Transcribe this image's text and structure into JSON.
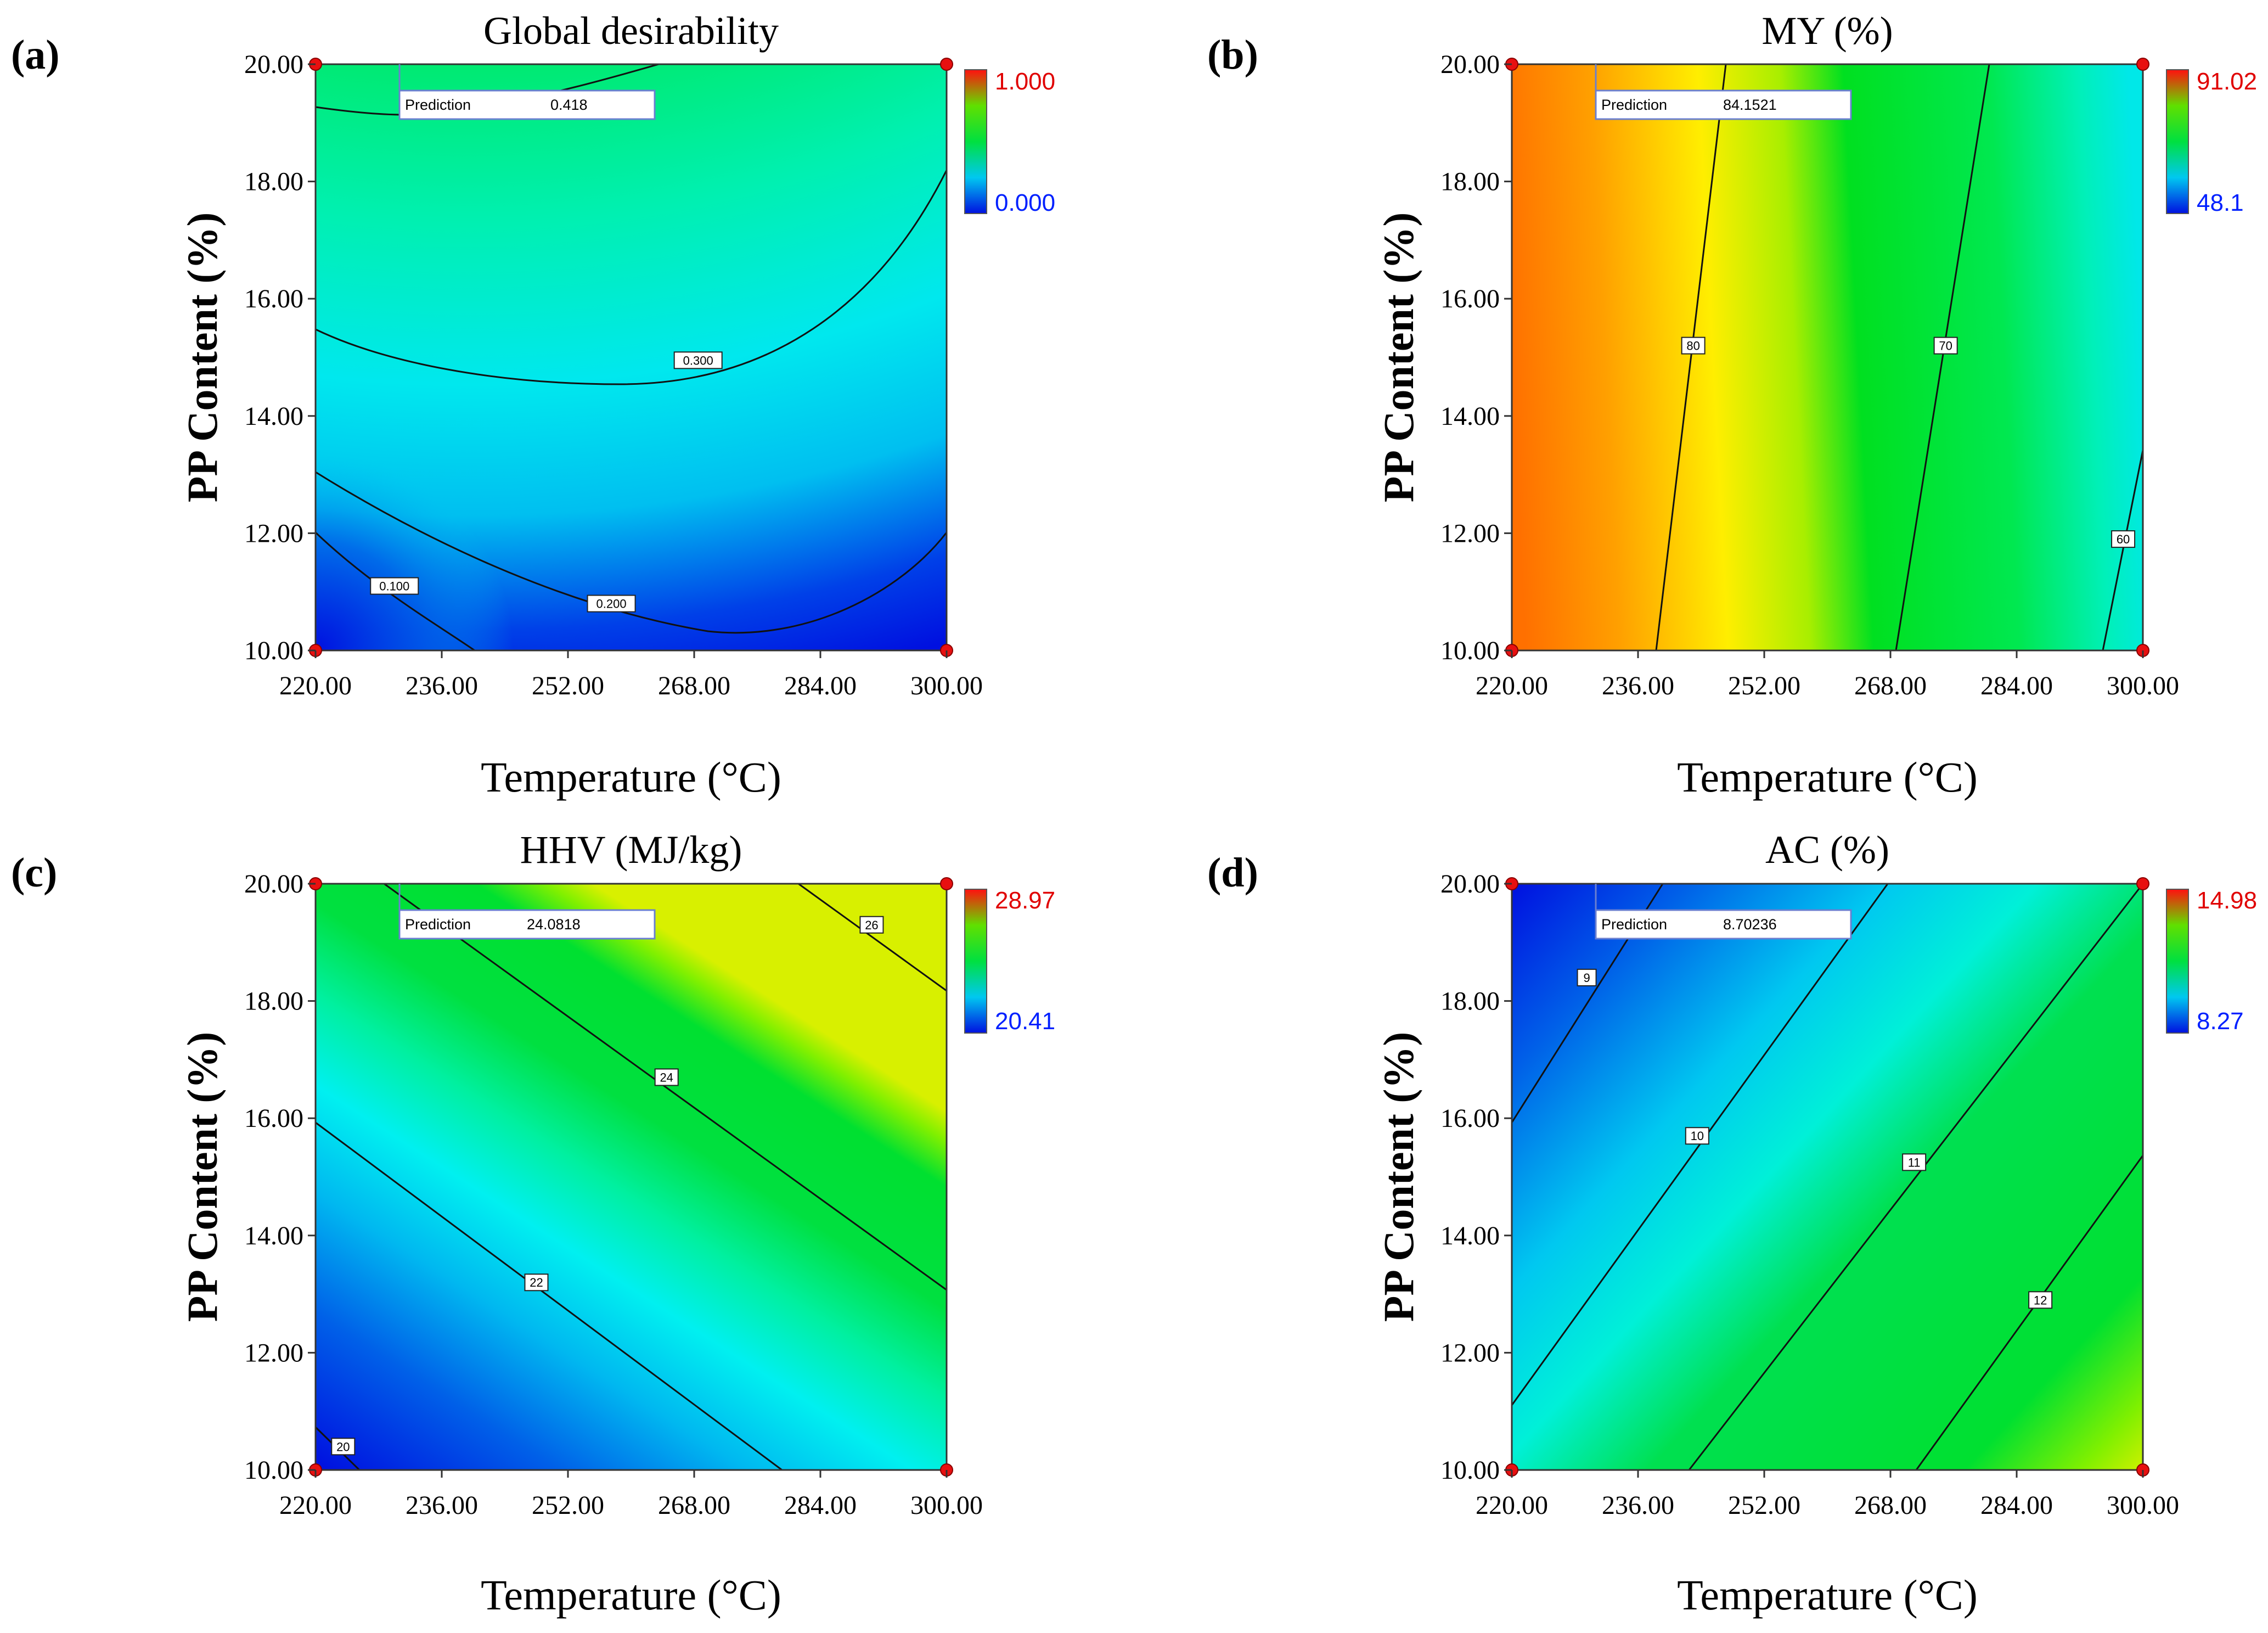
{
  "figure": {
    "panels": [
      {
        "panel_label": "(a)",
        "title": "Global desirability",
        "xlabel": "Temperature (°C)",
        "ylabel": "PP Content (%)",
        "x_ticks": [
          "220.00",
          "236.00",
          "252.00",
          "268.00",
          "284.00",
          "300.00"
        ],
        "y_ticks": [
          "10.00",
          "12.00",
          "14.00",
          "16.00",
          "18.00",
          "20.00"
        ],
        "prediction": {
          "label": "Prediction",
          "value": "0.418"
        },
        "colorbar": {
          "max_label": "1.000",
          "min_label": "0.000"
        },
        "contour_labels": [
          {
            "text": "0.100",
            "x": 230.0,
            "y": 11.1
          },
          {
            "text": "0.200",
            "x": 257.5,
            "y": 10.8
          },
          {
            "text": "0.300",
            "x": 268.5,
            "y": 14.95
          }
        ]
      },
      {
        "panel_label": "(b)",
        "title": "MY (%)",
        "xlabel": "Temperature (°C)",
        "ylabel": "PP Content (%)",
        "x_ticks": [
          "220.00",
          "236.00",
          "252.00",
          "268.00",
          "284.00",
          "300.00"
        ],
        "y_ticks": [
          "10.00",
          "12.00",
          "14.00",
          "16.00",
          "18.00",
          "20.00"
        ],
        "prediction": {
          "label": "Prediction",
          "value": "84.1521"
        },
        "colorbar": {
          "max_label": "91.02",
          "min_label": "48.1"
        },
        "contour_labels": [
          {
            "text": "80",
            "x": 243.0,
            "y": 15.2
          },
          {
            "text": "70",
            "x": 275.0,
            "y": 15.2
          },
          {
            "text": "60",
            "x": 297.5,
            "y": 11.9
          }
        ]
      },
      {
        "panel_label": "(c)",
        "title": "HHV (MJ/kg)",
        "xlabel": "Temperature (°C)",
        "ylabel": "PP Content (%)",
        "x_ticks": [
          "220.00",
          "236.00",
          "252.00",
          "268.00",
          "284.00",
          "300.00"
        ],
        "y_ticks": [
          "10.00",
          "12.00",
          "14.00",
          "16.00",
          "18.00",
          "20.00"
        ],
        "prediction": {
          "label": "Prediction",
          "value": "24.0818"
        },
        "colorbar": {
          "max_label": "28.97",
          "min_label": "20.41"
        },
        "contour_labels": [
          {
            "text": "20",
            "x": 223.5,
            "y": 10.4
          },
          {
            "text": "22",
            "x": 248.0,
            "y": 13.2
          },
          {
            "text": "24",
            "x": 264.5,
            "y": 16.7
          },
          {
            "text": "26",
            "x": 290.5,
            "y": 19.3
          }
        ]
      },
      {
        "panel_label": "(d)",
        "title": "AC (%)",
        "xlabel": "Temperature (°C)",
        "ylabel": "PP Content (%)",
        "x_ticks": [
          "220.00",
          "236.00",
          "252.00",
          "268.00",
          "284.00",
          "300.00"
        ],
        "y_ticks": [
          "10.00",
          "12.00",
          "14.00",
          "16.00",
          "18.00",
          "20.00"
        ],
        "prediction": {
          "label": "Prediction",
          "value": "8.70236"
        },
        "colorbar": {
          "max_label": "14.98",
          "min_label": "8.27"
        },
        "contour_labels": [
          {
            "text": "9",
            "x": 229.5,
            "y": 18.4
          },
          {
            "text": "10",
            "x": 243.5,
            "y": 15.7
          },
          {
            "text": "11",
            "x": 271.0,
            "y": 15.25
          },
          {
            "text": "12",
            "x": 287.0,
            "y": 12.9
          }
        ]
      }
    ]
  },
  "chart_data": [
    {
      "type": "heatmap",
      "subtype": "contour",
      "title": "Global desirability",
      "xlabel": "Temperature (°C)",
      "ylabel": "PP Content (%)",
      "xlim": [
        220,
        300
      ],
      "ylim": [
        10,
        20
      ],
      "colorbar_range": [
        0.0,
        1.0
      ],
      "contour_levels": [
        0.1,
        0.2,
        0.3
      ],
      "prediction": 0.418,
      "design_points": [
        [
          220,
          10
        ],
        [
          220,
          20
        ],
        [
          300,
          10
        ],
        [
          300,
          20
        ]
      ],
      "colors": {
        "low": "#0010e0",
        "mid_low": "#00e8f0",
        "mid_high": "#00e060",
        "high": "#ff2000"
      }
    },
    {
      "type": "heatmap",
      "subtype": "contour",
      "title": "MY (%)",
      "xlabel": "Temperature (°C)",
      "ylabel": "PP Content (%)",
      "xlim": [
        220,
        300
      ],
      "ylim": [
        10,
        20
      ],
      "colorbar_range": [
        48.1,
        91.02
      ],
      "contour_levels": [
        60,
        70,
        80
      ],
      "prediction": 84.1521,
      "design_points": [
        [
          220,
          10
        ],
        [
          220,
          20
        ],
        [
          300,
          10
        ],
        [
          300,
          20
        ]
      ]
    },
    {
      "type": "heatmap",
      "subtype": "contour",
      "title": "HHV (MJ/kg)",
      "xlabel": "Temperature (°C)",
      "ylabel": "PP Content (%)",
      "xlim": [
        220,
        300
      ],
      "ylim": [
        10,
        20
      ],
      "colorbar_range": [
        20.41,
        28.97
      ],
      "contour_levels": [
        20,
        22,
        24,
        26
      ],
      "prediction": 24.0818,
      "design_points": [
        [
          220,
          10
        ],
        [
          220,
          20
        ],
        [
          300,
          10
        ],
        [
          300,
          20
        ]
      ]
    },
    {
      "type": "heatmap",
      "subtype": "contour",
      "title": "AC (%)",
      "xlabel": "Temperature (°C)",
      "ylabel": "PP Content (%)",
      "xlim": [
        220,
        300
      ],
      "ylim": [
        10,
        20
      ],
      "colorbar_range": [
        8.27,
        14.98
      ],
      "contour_levels": [
        9,
        10,
        11,
        12
      ],
      "prediction": 8.70236,
      "design_points": [
        [
          220,
          10
        ],
        [
          220,
          20
        ],
        [
          300,
          10
        ],
        [
          300,
          20
        ]
      ]
    }
  ]
}
